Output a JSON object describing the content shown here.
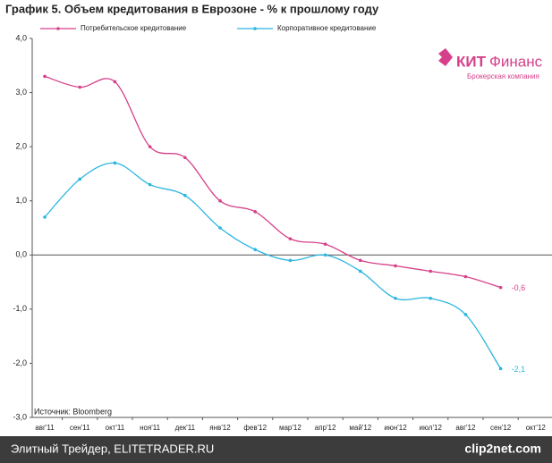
{
  "chart_data": {
    "type": "line",
    "title": "График 5. Объем кредитования в Еврозоне - % к прошлому году",
    "categories": [
      "авг'11",
      "сен'11",
      "окт'11",
      "ноя'11",
      "дек'11",
      "янв'12",
      "фев'12",
      "мар'12",
      "апр'12",
      "май'12",
      "июн'12",
      "июл'12",
      "авг'12",
      "сен'12",
      "окт'12"
    ],
    "series": [
      {
        "name": "Потребительское кредитование",
        "color": "#d6408a",
        "values": [
          3.3,
          3.1,
          3.2,
          2.0,
          1.8,
          1.0,
          0.8,
          0.3,
          0.2,
          -0.1,
          -0.2,
          -0.3,
          -0.4,
          -0.6,
          null
        ],
        "value_labels": [
          null,
          null,
          null,
          null,
          null,
          null,
          null,
          null,
          null,
          null,
          null,
          null,
          null,
          "-0,6",
          null
        ]
      },
      {
        "name": "Корпоративное кредитование",
        "color": "#2bb5e0",
        "values": [
          0.7,
          1.4,
          1.7,
          1.3,
          1.1,
          0.5,
          0.1,
          -0.1,
          0.0,
          -0.3,
          -0.8,
          -0.8,
          -1.1,
          -2.1,
          null
        ],
        "value_labels": [
          null,
          null,
          null,
          null,
          null,
          null,
          null,
          null,
          null,
          null,
          null,
          null,
          null,
          "-2,1",
          null
        ]
      }
    ],
    "ylim": [
      -3,
      4
    ],
    "yticks": [
      {
        "value": 4,
        "label": "4,0"
      },
      {
        "value": 3,
        "label": "3,0"
      },
      {
        "value": 2,
        "label": "2,0"
      },
      {
        "value": 1,
        "label": "1,0"
      },
      {
        "value": 0,
        "label": "0,0"
      },
      {
        "value": -1,
        "label": "-1,0"
      },
      {
        "value": -2,
        "label": "-2,0"
      },
      {
        "value": -3,
        "label": "-3,0"
      }
    ],
    "grid": false,
    "legend": "top",
    "source": "Источник: Bloomberg",
    "logo": {
      "name_bold": "КИТ",
      "name_rest": "Финанс",
      "tagline": "Брокерская компания"
    }
  },
  "footer": {
    "left": "Элитный Трейдер, ELITETRADER.RU",
    "right": "clip2net.com"
  }
}
